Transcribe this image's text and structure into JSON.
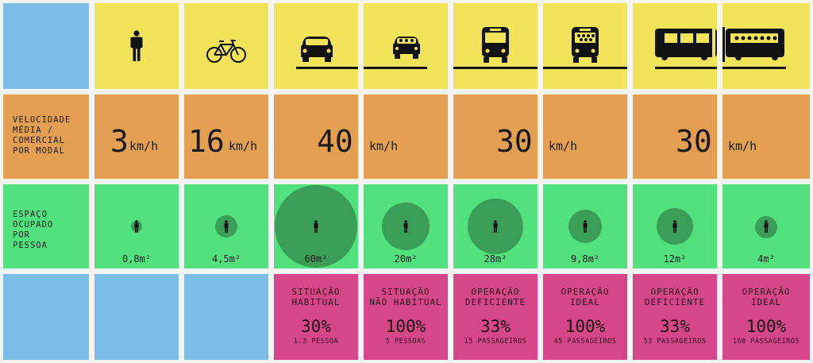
{
  "row_labels": {
    "speed": [
      "VELOCIDADE",
      "MÉDIA /",
      "COMERCIAL",
      "POR MODAL"
    ],
    "space": [
      "ESPAÇO",
      "OCUPADO",
      "POR",
      "PESSOA"
    ]
  },
  "speeds": {
    "walk": {
      "value": "3",
      "unit": "km/h"
    },
    "bike": {
      "value": "16",
      "unit": "km/h"
    },
    "car": {
      "value": "40",
      "unit": "km/h"
    },
    "bus": {
      "value": "30",
      "unit": "km/h"
    },
    "brt": {
      "value": "30",
      "unit": "km/h"
    }
  },
  "areas": [
    "0,8m²",
    "4,5m²",
    "60m²",
    "20m²",
    "28m²",
    "9,8m²",
    "12m²",
    "4m²"
  ],
  "situations": [
    {
      "title": [
        "SITUAÇÃO",
        "HABITUAL"
      ],
      "pct": "30%",
      "sub": "1.3 PESSOA"
    },
    {
      "title": [
        "SITUAÇÃO",
        "NÃO HABITUAL"
      ],
      "pct": "100%",
      "sub": "5 PESSOAS"
    },
    {
      "title": [
        "OPERAÇÃO",
        "DEFICIENTE"
      ],
      "pct": "33%",
      "sub": "15 PASSAGEIROS"
    },
    {
      "title": [
        "OPERAÇÃO",
        "IDEAL"
      ],
      "pct": "100%",
      "sub": "45 PASSAGEIROS"
    },
    {
      "title": [
        "OPERAÇÃO",
        "DEFICIENTE"
      ],
      "pct": "33%",
      "sub": "53 PASSAGEIROS"
    },
    {
      "title": [
        "OPERAÇÃO",
        "IDEAL"
      ],
      "pct": "100%",
      "sub": "160 PASSAGEIROS"
    }
  ],
  "icons": [
    "person-icon",
    "bicycle-icon",
    "car-icon",
    "car-full-icon",
    "bus-icon",
    "bus-full-icon",
    "brt-icon",
    "brt-full-icon"
  ],
  "colors": {
    "blue": "#7bbde6",
    "yellow": "#f2e45a",
    "orange": "#e3a052",
    "green": "#53e07f",
    "pink": "#d6478a",
    "circle": "#3a9e56"
  }
}
